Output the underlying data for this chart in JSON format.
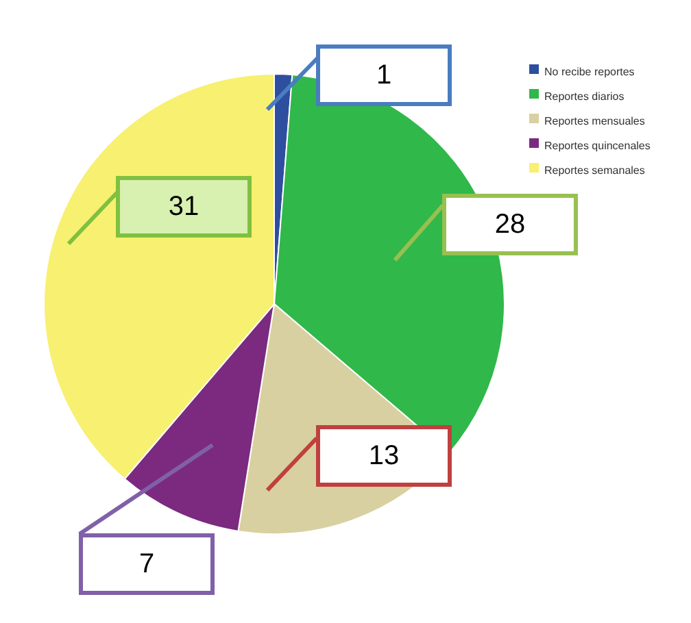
{
  "chart_data": {
    "type": "pie",
    "categories": [
      "No recibe reportes",
      "Reportes diarios",
      "Reportes mensuales",
      "Reportes quincenales",
      "Reportes semanales"
    ],
    "values": [
      1,
      28,
      13,
      7,
      31
    ],
    "colors": [
      "#2e4fa0",
      "#30b84a",
      "#d8d0a0",
      "#7b2a80",
      "#f8f070"
    ],
    "data_labels": true,
    "legend": "top right"
  }
}
